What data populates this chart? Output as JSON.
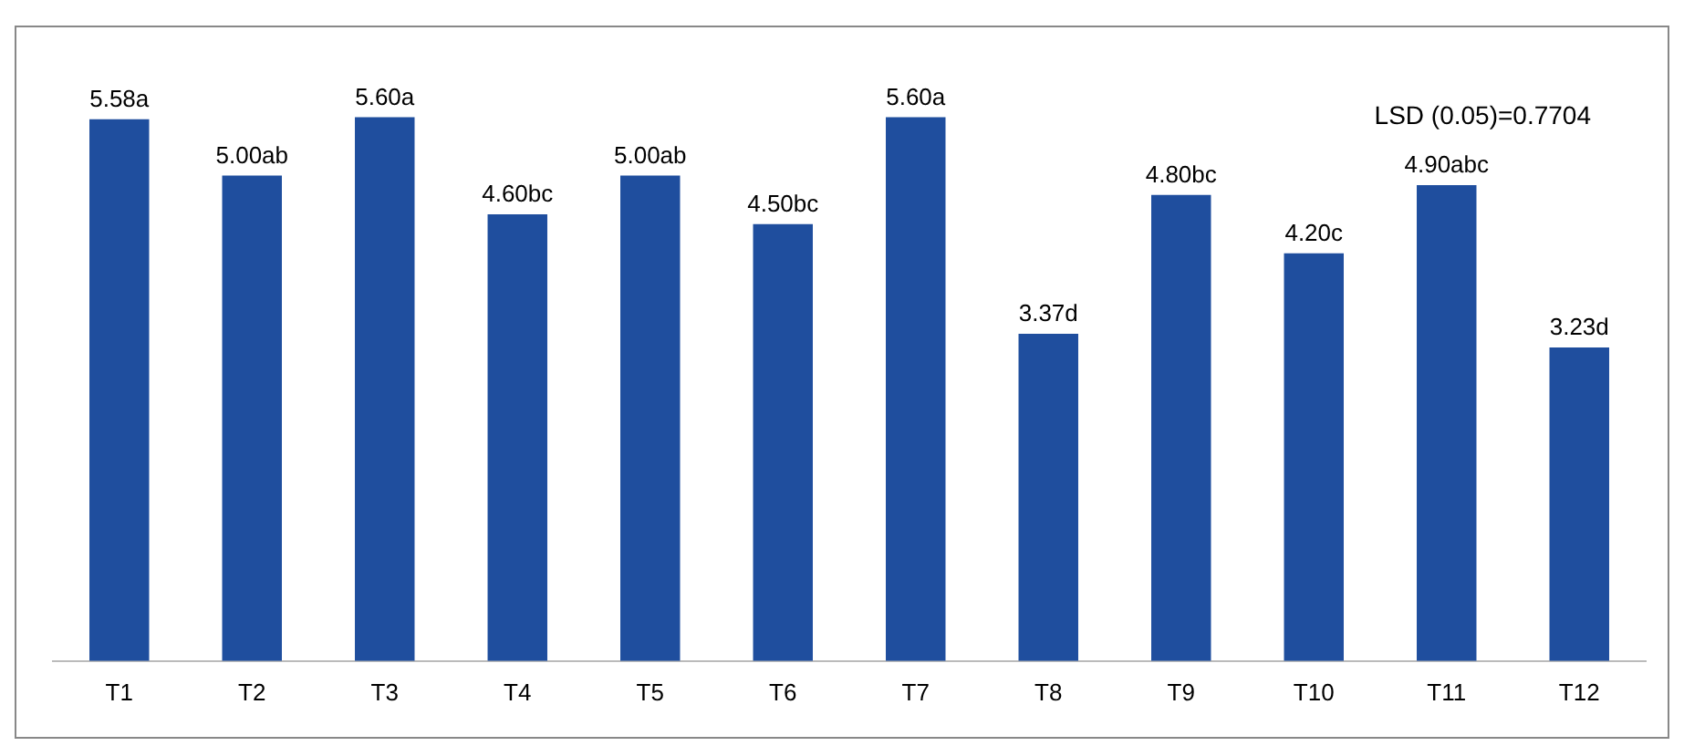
{
  "chart_data": {
    "type": "bar",
    "categories": [
      "T1",
      "T2",
      "T3",
      "T4",
      "T5",
      "T6",
      "T7",
      "T8",
      "T9",
      "T10",
      "T11",
      "T12"
    ],
    "values": [
      5.58,
      5.0,
      5.6,
      4.6,
      5.0,
      4.5,
      5.6,
      3.37,
      4.8,
      4.2,
      4.9,
      3.23
    ],
    "value_labels": [
      "5.58a",
      "5.00ab",
      "5.60a",
      "4.60bc",
      "5.00ab",
      "4.50bc",
      "5.60a",
      "3.37d",
      "4.80bc",
      "4.20c",
      "4.90abc",
      "3.23d"
    ],
    "color": "#1f4e9e",
    "annotations": [
      "LSD (0.05)=0.7704"
    ],
    "grid": false,
    "legend": false
  }
}
